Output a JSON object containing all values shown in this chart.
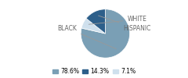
{
  "slices": [
    78.6,
    7.1,
    14.3
  ],
  "slice_order": [
    "BLACK",
    "WHITE",
    "HISPANIC"
  ],
  "colors": [
    "#7a9fb5",
    "#cfe0ed",
    "#2d5f8a"
  ],
  "legend_labels": [
    "78.6%",
    "14.3%",
    "7.1%"
  ],
  "legend_colors": [
    "#7a9fb5",
    "#2d5f8a",
    "#cfe0ed"
  ],
  "startangle": 90,
  "label_fontsize": 5.5,
  "legend_fontsize": 5.5,
  "label_color": "#666666",
  "line_color": "#999999"
}
